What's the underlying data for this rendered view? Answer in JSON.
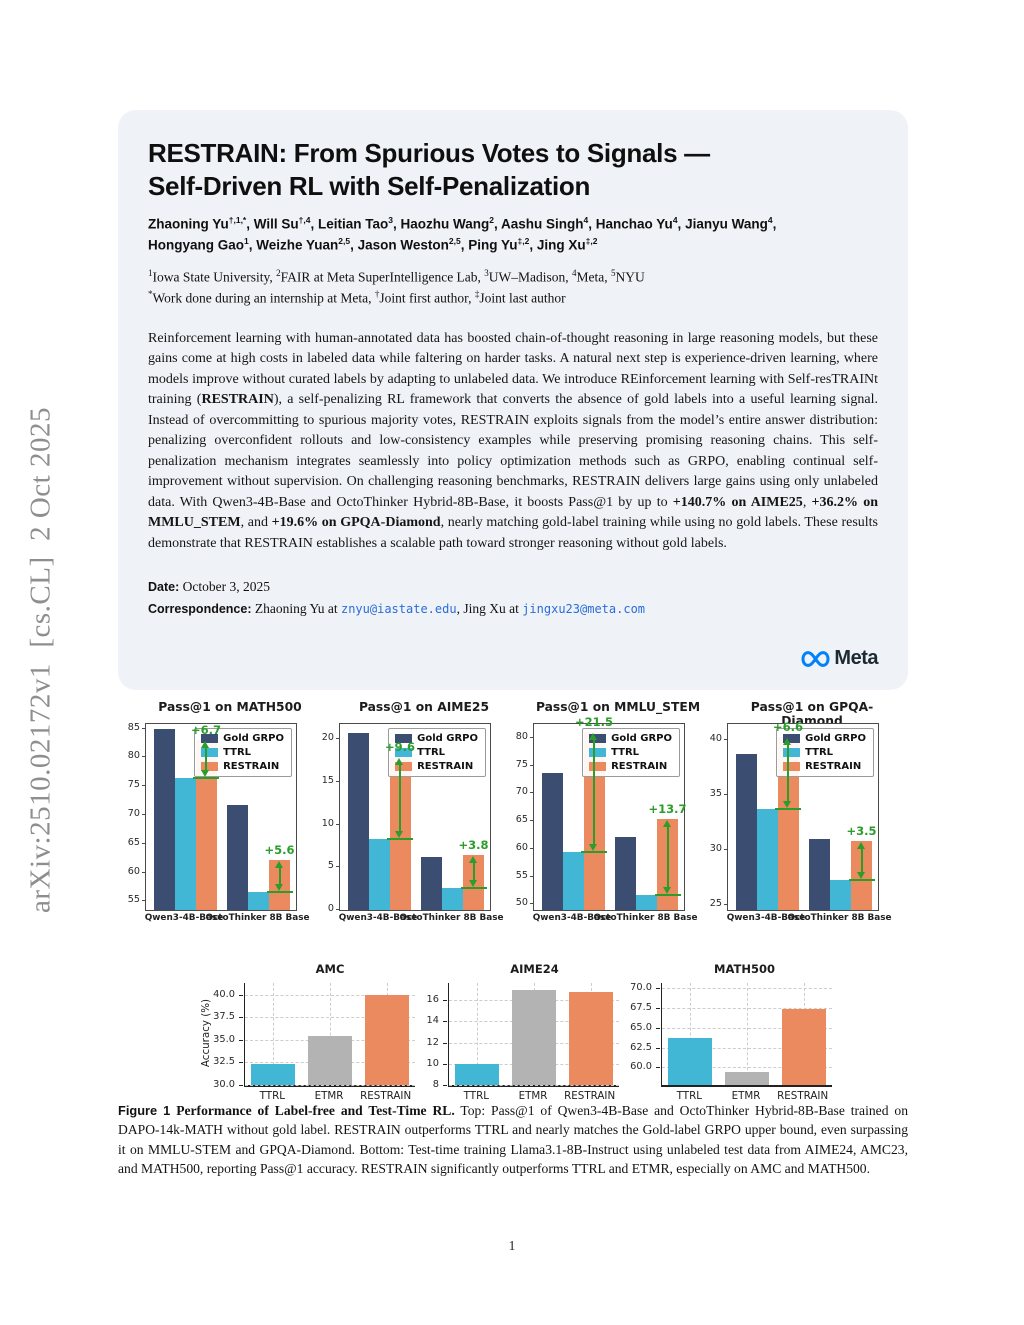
{
  "sidebar": {
    "arxiv_label": "arXiv:2510.02172v1  [cs.CL]  2 Oct 2025"
  },
  "header": {
    "title_line1": "RESTRAIN: From Spurious Votes to Signals —",
    "title_line2": "Self-Driven RL with Self-Penalization",
    "author_lines": [
      {
        "items": [
          {
            "name": "Zhaoning Yu",
            "sup": "†,1,*"
          },
          {
            "name": "Will Su",
            "sup": "†,4"
          },
          {
            "name": "Leitian Tao",
            "sup": "3"
          },
          {
            "name": "Haozhu Wang",
            "sup": "2"
          },
          {
            "name": "Aashu Singh",
            "sup": "4"
          },
          {
            "name": "Hanchao Yu",
            "sup": "4"
          },
          {
            "name": "Jianyu Wang",
            "sup": "4"
          }
        ],
        "line_end": ","
      },
      {
        "items": [
          {
            "name": "Hongyang Gao",
            "sup": "1"
          },
          {
            "name": "Weizhe Yuan",
            "sup": "2,5"
          },
          {
            "name": "Jason Weston",
            "sup": "2,5"
          },
          {
            "name": "Ping Yu",
            "sup": "‡,2"
          },
          {
            "name": "Jing Xu",
            "sup": "‡,2"
          }
        ],
        "line_end": ""
      }
    ],
    "affiliations": [
      {
        "sup": "1",
        "text": "Iowa State University, "
      },
      {
        "sup": "2",
        "text": "FAIR at Meta SuperIntelligence Lab, "
      },
      {
        "sup": "3",
        "text": "UW–Madison, "
      },
      {
        "sup": "4",
        "text": "Meta, "
      },
      {
        "sup": "5",
        "text": "NYU"
      }
    ],
    "notes": [
      {
        "sup": "*",
        "text": "Work done during an internship at Meta, "
      },
      {
        "sup": "†",
        "text": "Joint first author, "
      },
      {
        "sup": "‡",
        "text": "Joint last author"
      }
    ]
  },
  "abstract_segments": [
    {
      "text": "Reinforcement learning with human-annotated data has boosted chain-of-thought reasoning in large reasoning models, but these gains come at high costs in labeled data while faltering on harder tasks. A natural next step is experience-driven learning, where models improve without curated labels by adapting to unlabeled data. We introduce REinforcement learning with Self-resTRAINt training ("
    },
    {
      "text": "RESTRAIN",
      "bold": true
    },
    {
      "text": "), a self-penalizing RL framework that converts the absence of gold labels into a useful learning signal. Instead of overcommitting to spurious majority votes, RESTRAIN exploits signals from the model’s entire answer distribution: penalizing overconfident rollouts and low-consistency examples while preserving promising reasoning chains. This self-penalization mechanism integrates seamlessly into policy optimization methods such as GRPO, enabling continual self-improvement without supervision. On challenging reasoning benchmarks, RESTRAIN delivers large gains using only unlabeled data. With Qwen3-4B-Base and OctoThinker Hybrid-8B-Base, it boosts Pass@1 by up to "
    },
    {
      "text": "+140.7% on AIME25",
      "bold": true
    },
    {
      "text": ", "
    },
    {
      "text": "+36.2% on MMLU_STEM",
      "bold": true
    },
    {
      "text": ", and "
    },
    {
      "text": "+19.6% on GPQA-Diamond",
      "bold": true
    },
    {
      "text": ", nearly matching gold-label training while using no gold labels. These results demonstrate that RESTRAIN establishes a scalable path toward stronger reasoning without gold labels."
    }
  ],
  "dateline": {
    "date_label": "Date:",
    "date_value": "October 3, 2025",
    "corr_label": "Correspondence:",
    "corr_segments": [
      {
        "text": "Zhaoning Yu at "
      },
      {
        "text": "znyu@iastate.edu",
        "style": "email"
      },
      {
        "text": ", Jing Xu at "
      },
      {
        "text": "jingxu23@meta.com",
        "style": "email"
      }
    ]
  },
  "meta_logo": {
    "text": "Meta"
  },
  "colors": {
    "gold_grpo": "#3b4d71",
    "ttrl": "#41b6d5",
    "restrain": "#ec8a5f",
    "etmr": "#b3b3b3",
    "annotation_green": "#2a9d2a",
    "link_blue": "#2a6dd9",
    "meta_blue": "#0082fb",
    "card_bg": "#eff2f6",
    "bottom_bar_colors": [
      "#41b6d5",
      "#b3b3b3",
      "#ec8a5f"
    ]
  },
  "chart_data": [
    {
      "row": "top",
      "type": "bar",
      "variant": "grouped",
      "title": "Pass@1 on MATH500",
      "categories": [
        "Qwen3-4B-Base",
        "OctoThinker 8B Base"
      ],
      "series": [
        {
          "name": "Gold GRPO",
          "color": "#3b4d71",
          "values": [
            85.0,
            71.8
          ]
        },
        {
          "name": "TTRL",
          "color": "#41b6d5",
          "values": [
            76.4,
            56.6
          ]
        },
        {
          "name": "RESTRAIN",
          "color": "#ec8a5f",
          "values": [
            83.1,
            62.2
          ]
        }
      ],
      "annotations": [
        {
          "group": 0,
          "label": "+6.7"
        },
        {
          "group": 1,
          "label": "+5.6"
        }
      ],
      "ylim": [
        53.5,
        85.8
      ],
      "yticks": [
        55,
        60,
        65,
        70,
        75,
        80,
        85
      ],
      "ytick_labels": [
        "55",
        "60",
        "65",
        "70",
        "75",
        "80",
        "85"
      ],
      "legend_position": "upper right",
      "grid": false
    },
    {
      "row": "top",
      "type": "bar",
      "variant": "grouped",
      "title": "Pass@1 on AIME25",
      "categories": [
        "Qwen3-4B-Base",
        "OctoThinker 8B Base"
      ],
      "series": [
        {
          "name": "Gold GRPO",
          "color": "#3b4d71",
          "values": [
            20.8,
            6.2
          ]
        },
        {
          "name": "TTRL",
          "color": "#41b6d5",
          "values": [
            8.3,
            2.6
          ]
        },
        {
          "name": "RESTRAIN",
          "color": "#ec8a5f",
          "values": [
            17.9,
            6.4
          ]
        }
      ],
      "annotations": [
        {
          "group": 0,
          "label": "+9.6"
        },
        {
          "group": 1,
          "label": "+3.8"
        }
      ],
      "ylim": [
        0,
        21.8
      ],
      "yticks": [
        0,
        5,
        10,
        15,
        20
      ],
      "ytick_labels": [
        "0",
        "5",
        "10",
        "15",
        "20"
      ],
      "legend_position": "upper right",
      "grid": false
    },
    {
      "row": "top",
      "type": "bar",
      "variant": "grouped",
      "title": "Pass@1 on MMLU_STEM",
      "categories": [
        "Qwen3-4B-Base",
        "OctoThinker 8B Base"
      ],
      "series": [
        {
          "name": "Gold GRPO",
          "color": "#3b4d71",
          "values": [
            73.7,
            62.1
          ]
        },
        {
          "name": "TTRL",
          "color": "#41b6d5",
          "values": [
            59.5,
            51.7
          ]
        },
        {
          "name": "RESTRAIN",
          "color": "#ec8a5f",
          "values": [
            81.0,
            65.4
          ]
        }
      ],
      "annotations": [
        {
          "group": 0,
          "label": "+21.5"
        },
        {
          "group": 1,
          "label": "+13.7"
        }
      ],
      "ylim": [
        49,
        82.5
      ],
      "yticks": [
        50,
        55,
        60,
        65,
        70,
        75,
        80
      ],
      "ytick_labels": [
        "50",
        "55",
        "60",
        "65",
        "70",
        "75",
        "80"
      ],
      "legend_position": "upper right",
      "grid": false
    },
    {
      "row": "top",
      "type": "bar",
      "variant": "grouped",
      "title": "Pass@1 on GPQA-Diamond",
      "categories": [
        "Qwen3-4B-Base",
        "OctoThinker 8B Base"
      ],
      "series": [
        {
          "name": "Gold GRPO",
          "color": "#3b4d71",
          "values": [
            38.8,
            31.0
          ]
        },
        {
          "name": "TTRL",
          "color": "#41b6d5",
          "values": [
            33.7,
            27.2
          ]
        },
        {
          "name": "RESTRAIN",
          "color": "#ec8a5f",
          "values": [
            40.3,
            30.8
          ]
        }
      ],
      "annotations": [
        {
          "group": 0,
          "label": "+6.6"
        },
        {
          "group": 1,
          "label": "+3.5"
        }
      ],
      "ylim": [
        24.5,
        41.5
      ],
      "yticks": [
        25,
        30,
        35,
        40
      ],
      "ytick_labels": [
        "25",
        "30",
        "35",
        "40"
      ],
      "legend_position": "upper right",
      "grid": false
    },
    {
      "row": "bottom",
      "type": "bar",
      "variant": "simple",
      "title": "AMC",
      "ylabel": "Accuracy (%)",
      "categories": [
        "TTRL",
        "ETMR",
        "RESTRAIN"
      ],
      "values": [
        32.3,
        35.4,
        40.0
      ],
      "ylim": [
        30,
        41.3
      ],
      "yticks": [
        30.0,
        32.5,
        35.0,
        37.5,
        40.0
      ],
      "ytick_labels": [
        "30.0",
        "32.5",
        "35.0",
        "37.5",
        "40.0"
      ],
      "grid": true
    },
    {
      "row": "bottom",
      "type": "bar",
      "variant": "simple",
      "title": "AIME24",
      "ylabel": "",
      "categories": [
        "TTRL",
        "ETMR",
        "RESTRAIN"
      ],
      "values": [
        10.0,
        16.9,
        16.8
      ],
      "ylim": [
        8,
        17.6
      ],
      "yticks": [
        8,
        10,
        12,
        14,
        16
      ],
      "ytick_labels": [
        "8",
        "10",
        "12",
        "14",
        "16"
      ],
      "grid": true
    },
    {
      "row": "bottom",
      "type": "bar",
      "variant": "simple",
      "title": "MATH500",
      "ylabel": "",
      "categories": [
        "TTRL",
        "ETMR",
        "RESTRAIN"
      ],
      "values": [
        63.7,
        59.4,
        67.4
      ],
      "ylim": [
        57.8,
        70.6
      ],
      "yticks": [
        60.0,
        62.5,
        65.0,
        67.5,
        70.0
      ],
      "ytick_labels": [
        "60.0",
        "62.5",
        "65.0",
        "67.5",
        "70.0"
      ],
      "grid": true
    }
  ],
  "caption_segments": [
    {
      "text": "Figure 1",
      "style": "figlabel"
    },
    {
      "text": "  ",
      "style": "plain"
    },
    {
      "text": "Performance of Label-free and Test-Time RL.",
      "style": "boldserif"
    },
    {
      "text": " Top: Pass@1 of Qwen3-4B-Base and OctoThinker Hybrid-8B-Base trained on DAPO-14k-MATH without gold label. RESTRAIN outperforms TTRL and nearly matches the Gold-label GRPO upper bound, even surpassing it on MMLU-STEM and GPQA-Diamond. Bottom: Test-time training Llama3.1-8B-Instruct using unlabeled test data from AIME24, AMC23, and MATH500, reporting Pass@1 accuracy. RESTRAIN significantly outperforms TTRL and ETMR, especially on AMC and MATH500.",
      "style": "plain"
    }
  ],
  "footer": {
    "page_number": "1"
  }
}
